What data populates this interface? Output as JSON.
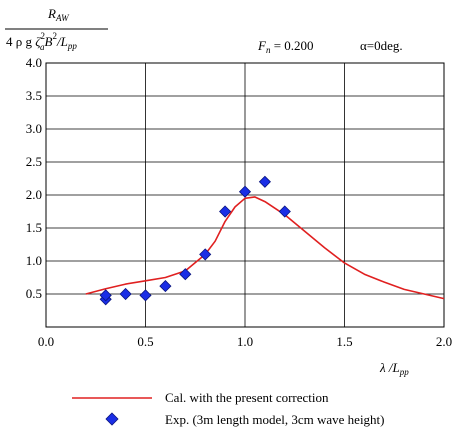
{
  "chart_data": {
    "type": "line",
    "ylabel": {
      "numerator": "R",
      "numerator_sub": "AW",
      "denominator_prefix": "4 ρ g ",
      "zeta": "ζ",
      "zeta_sup": "2",
      "zeta_sub": "a",
      "denominator_B": "B",
      "B_sup": "2",
      "denominator_suffix": "/L",
      "L_sub": "pp"
    },
    "xlabel": {
      "lambda": "λ",
      "slash": " /L",
      "sub": "pp"
    },
    "conditions": {
      "fn_symbol": "F",
      "fn_sub": "n",
      "fn_value": " = 0.200",
      "alpha_text": "α=0deg."
    },
    "xlim": [
      0.0,
      2.0
    ],
    "ylim": [
      0.0,
      4.0
    ],
    "x_ticks": [
      "0.0",
      "0.5",
      "1.0",
      "1.5",
      "2.0"
    ],
    "x_tick_values": [
      0.0,
      0.5,
      1.0,
      1.5,
      2.0
    ],
    "y_ticks": [
      "0.5",
      "1.0",
      "1.5",
      "2.0",
      "2.5",
      "3.0",
      "3.5",
      "4.0"
    ],
    "y_tick_values": [
      0.5,
      1.0,
      1.5,
      2.0,
      2.5,
      3.0,
      3.5,
      4.0
    ],
    "grid": true,
    "series": [
      {
        "name": "Cal. with the present correction",
        "kind": "line",
        "color": "#e02020",
        "points": [
          [
            0.2,
            0.5
          ],
          [
            0.3,
            0.58
          ],
          [
            0.4,
            0.65
          ],
          [
            0.5,
            0.7
          ],
          [
            0.6,
            0.75
          ],
          [
            0.7,
            0.85
          ],
          [
            0.8,
            1.1
          ],
          [
            0.85,
            1.3
          ],
          [
            0.9,
            1.6
          ],
          [
            0.95,
            1.82
          ],
          [
            1.0,
            1.95
          ],
          [
            1.05,
            1.97
          ],
          [
            1.1,
            1.9
          ],
          [
            1.2,
            1.7
          ],
          [
            1.3,
            1.45
          ],
          [
            1.4,
            1.2
          ],
          [
            1.5,
            0.97
          ],
          [
            1.6,
            0.8
          ],
          [
            1.7,
            0.68
          ],
          [
            1.8,
            0.57
          ],
          [
            1.9,
            0.5
          ],
          [
            2.0,
            0.43
          ]
        ]
      },
      {
        "name": "Exp. (3m length model, 3cm wave height)",
        "kind": "scatter",
        "color": "#1a2ee6",
        "points": [
          [
            0.3,
            0.42
          ],
          [
            0.3,
            0.48
          ],
          [
            0.4,
            0.5
          ],
          [
            0.5,
            0.48
          ],
          [
            0.6,
            0.62
          ],
          [
            0.7,
            0.8
          ],
          [
            0.8,
            1.1
          ],
          [
            0.9,
            1.75
          ],
          [
            1.0,
            2.05
          ],
          [
            1.1,
            2.2
          ],
          [
            1.2,
            1.75
          ]
        ]
      }
    ],
    "legend_position": "bottom"
  }
}
